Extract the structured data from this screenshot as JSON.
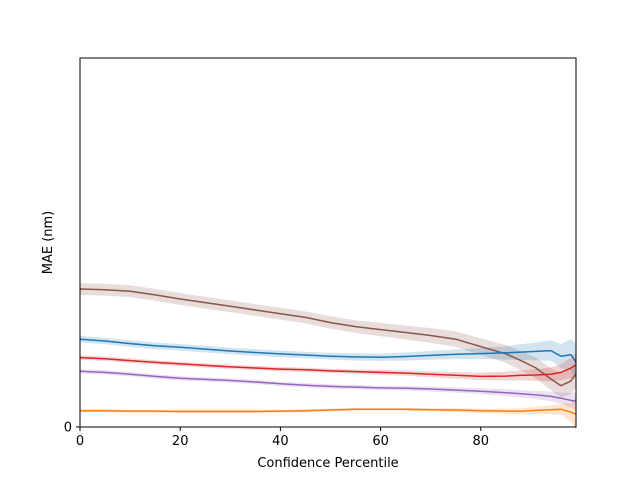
{
  "chart_data": {
    "type": "line",
    "title": "",
    "xlabel": "Confidence Percentile",
    "ylabel": "MAE (nm)",
    "xlim": [
      0,
      99
    ],
    "ylim": [
      0,
      1.0
    ],
    "xticks": [
      0,
      20,
      40,
      60,
      80
    ],
    "yticks": [
      0
    ],
    "grid": false,
    "legend": "none",
    "series": [
      {
        "color": "#8c564b",
        "x": [
          0,
          5,
          10,
          15,
          20,
          25,
          30,
          35,
          40,
          45,
          50,
          55,
          60,
          65,
          70,
          75,
          80,
          85,
          88,
          91,
          94,
          96,
          98,
          99
        ],
        "y": [
          0.374,
          0.372,
          0.368,
          0.358,
          0.347,
          0.337,
          0.327,
          0.317,
          0.307,
          0.297,
          0.283,
          0.272,
          0.264,
          0.256,
          0.248,
          0.238,
          0.218,
          0.198,
          0.18,
          0.16,
          0.13,
          0.112,
          0.125,
          0.145
        ],
        "band": [
          0.016,
          0.016,
          0.016,
          0.016,
          0.016,
          0.016,
          0.016,
          0.016,
          0.016,
          0.016,
          0.017,
          0.017,
          0.018,
          0.019,
          0.02,
          0.021,
          0.022,
          0.024,
          0.026,
          0.028,
          0.03,
          0.032,
          0.035,
          0.038
        ]
      },
      {
        "color": "#1f77b4",
        "x": [
          0,
          5,
          10,
          15,
          20,
          25,
          30,
          35,
          40,
          45,
          50,
          55,
          60,
          65,
          70,
          75,
          80,
          85,
          88,
          91,
          94,
          96,
          98,
          99
        ],
        "y": [
          0.238,
          0.233,
          0.226,
          0.22,
          0.216,
          0.211,
          0.206,
          0.202,
          0.198,
          0.195,
          0.192,
          0.19,
          0.189,
          0.191,
          0.194,
          0.197,
          0.199,
          0.201,
          0.203,
          0.205,
          0.207,
          0.192,
          0.196,
          0.176
        ],
        "band": [
          0.009,
          0.009,
          0.009,
          0.009,
          0.009,
          0.009,
          0.009,
          0.009,
          0.009,
          0.009,
          0.009,
          0.01,
          0.01,
          0.011,
          0.012,
          0.013,
          0.015,
          0.018,
          0.021,
          0.024,
          0.028,
          0.032,
          0.042,
          0.05
        ]
      },
      {
        "color": "#d62728",
        "x": [
          0,
          5,
          10,
          15,
          20,
          25,
          30,
          35,
          40,
          45,
          50,
          55,
          60,
          65,
          70,
          75,
          80,
          85,
          88,
          91,
          94,
          96,
          98,
          99
        ],
        "y": [
          0.188,
          0.185,
          0.18,
          0.175,
          0.171,
          0.167,
          0.163,
          0.16,
          0.157,
          0.155,
          0.152,
          0.15,
          0.148,
          0.146,
          0.143,
          0.14,
          0.137,
          0.138,
          0.14,
          0.141,
          0.143,
          0.148,
          0.16,
          0.168
        ],
        "band": [
          0.006,
          0.006,
          0.006,
          0.006,
          0.006,
          0.006,
          0.006,
          0.006,
          0.006,
          0.006,
          0.006,
          0.006,
          0.007,
          0.007,
          0.008,
          0.009,
          0.01,
          0.012,
          0.014,
          0.016,
          0.019,
          0.022,
          0.028,
          0.034
        ]
      },
      {
        "color": "#9467bd",
        "x": [
          0,
          5,
          10,
          15,
          20,
          25,
          30,
          35,
          40,
          45,
          50,
          55,
          60,
          65,
          70,
          75,
          80,
          85,
          88,
          91,
          94,
          96,
          98,
          99
        ],
        "y": [
          0.151,
          0.148,
          0.143,
          0.137,
          0.132,
          0.129,
          0.126,
          0.122,
          0.117,
          0.113,
          0.11,
          0.108,
          0.106,
          0.105,
          0.103,
          0.1,
          0.097,
          0.093,
          0.09,
          0.087,
          0.083,
          0.078,
          0.072,
          0.07
        ],
        "band": [
          0.006,
          0.006,
          0.006,
          0.006,
          0.006,
          0.006,
          0.006,
          0.006,
          0.006,
          0.006,
          0.006,
          0.006,
          0.006,
          0.006,
          0.007,
          0.007,
          0.008,
          0.009,
          0.01,
          0.011,
          0.013,
          0.015,
          0.02,
          0.024
        ]
      },
      {
        "color": "#ff7f0e",
        "x": [
          0,
          5,
          10,
          15,
          20,
          25,
          30,
          35,
          40,
          45,
          50,
          55,
          60,
          65,
          70,
          75,
          80,
          85,
          88,
          91,
          94,
          96,
          98,
          99
        ],
        "y": [
          0.044,
          0.044,
          0.043,
          0.043,
          0.042,
          0.042,
          0.042,
          0.042,
          0.043,
          0.044,
          0.046,
          0.048,
          0.048,
          0.048,
          0.047,
          0.046,
          0.044,
          0.043,
          0.043,
          0.045,
          0.047,
          0.048,
          0.04,
          0.035
        ],
        "band": [
          0.004,
          0.004,
          0.004,
          0.004,
          0.004,
          0.004,
          0.004,
          0.004,
          0.004,
          0.004,
          0.004,
          0.004,
          0.004,
          0.004,
          0.005,
          0.005,
          0.006,
          0.007,
          0.008,
          0.01,
          0.012,
          0.015,
          0.025,
          0.045
        ]
      }
    ]
  }
}
